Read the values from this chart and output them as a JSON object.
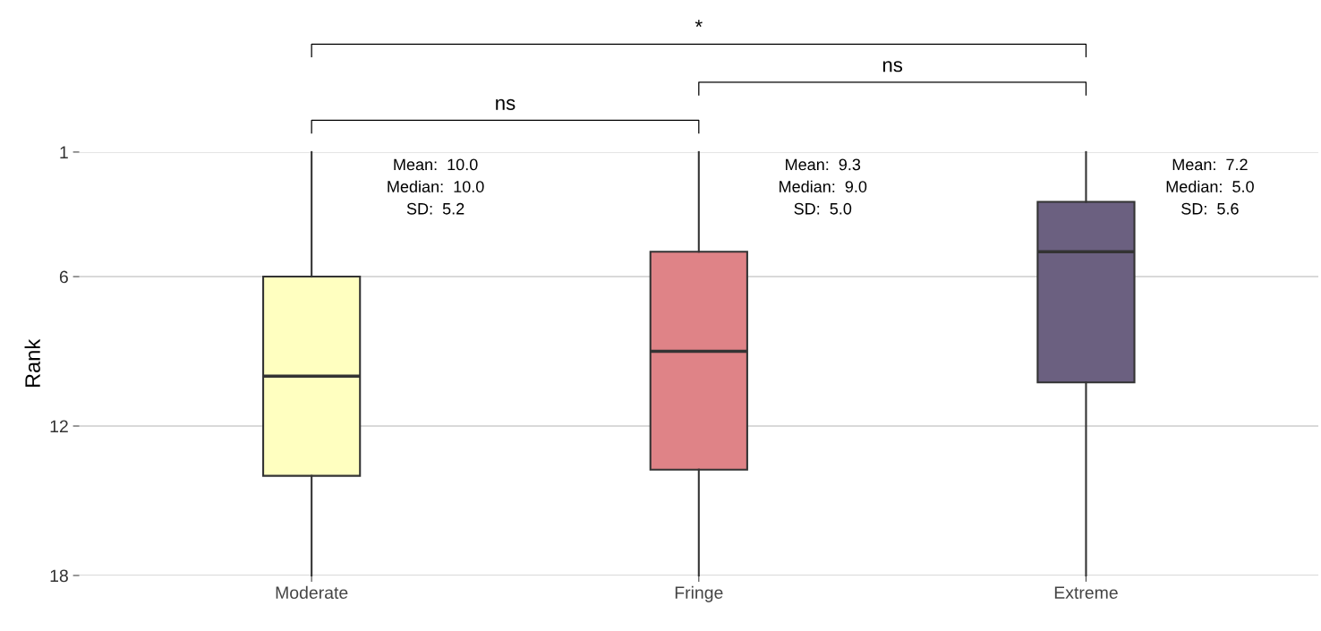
{
  "chart_data": {
    "type": "box",
    "ylabel": "Rank",
    "categories": [
      "Moderate",
      "Fringe",
      "Extreme"
    ],
    "colors": [
      "#ffffc0",
      "#df8387",
      "#6b6080"
    ],
    "boxes": [
      {
        "low": 1,
        "q1": 6,
        "median": 10,
        "q3": 14,
        "high": 18
      },
      {
        "low": 1,
        "q1": 5,
        "median": 9,
        "q3": 13.75,
        "high": 18
      },
      {
        "low": 1,
        "q1": 3,
        "median": 5,
        "q3": 10.25,
        "high": 18
      }
    ],
    "ylim": [
      18,
      1
    ],
    "yticks": [
      1,
      6,
      12,
      18
    ],
    "grid": "y",
    "legend": false,
    "annotations": [
      "Mean:  10.0\nMedian:  10.0\nSD:  5.2",
      "Mean:  9.3\nMedian:  9.0\nSD:  5.0",
      "Mean:  7.2\nMedian:  5.0\nSD:  5.6",
      "*",
      "ns",
      "ns"
    ]
  }
}
